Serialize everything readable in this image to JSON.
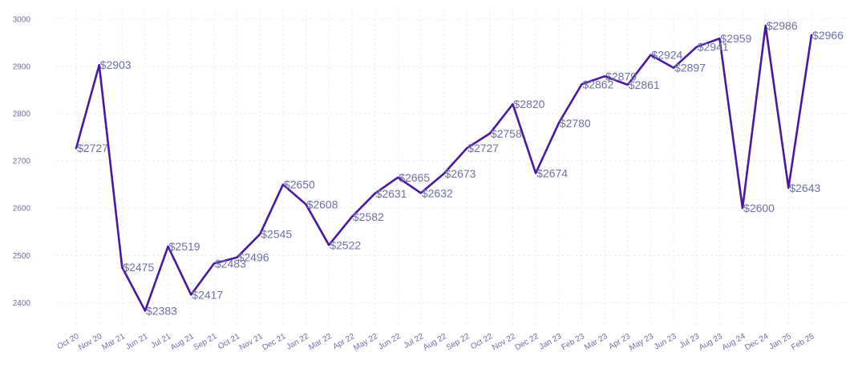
{
  "chart_data": {
    "type": "line",
    "title": "",
    "xlabel": "",
    "ylabel": "",
    "grid": true,
    "ylim": [
      2350,
      3020
    ],
    "yticks": [
      2400,
      2500,
      2600,
      2700,
      2800,
      2900,
      3000
    ],
    "line_color": "#4a17a0",
    "label_color": "#6f6fa8",
    "label_prefix": "$",
    "categories": [
      "Oct 20",
      "Nov 20",
      "Mar 21",
      "Jun 21",
      "Jul 21",
      "Aug 21",
      "Sep 21",
      "Oct 21",
      "Nov 21",
      "Dec 21",
      "Jan 22",
      "Mar 22",
      "Apr 22",
      "May 22",
      "Jun 22",
      "Jul 22",
      "Aug 22",
      "Sep 22",
      "Oct 22",
      "Nov 22",
      "Dec 22",
      "Jan 23",
      "Feb 23",
      "Mar 23",
      "Apr 23",
      "May 23",
      "Jun 23",
      "Jul 23",
      "Aug 23",
      "Aug 24",
      "Dec 24",
      "Jan 25",
      "Feb 25"
    ],
    "values": [
      2727,
      2903,
      2475,
      2383,
      2519,
      2417,
      2483,
      2496,
      2545,
      2650,
      2608,
      2522,
      2582,
      2631,
      2665,
      2632,
      2673,
      2727,
      2758,
      2820,
      2674,
      2780,
      2862,
      2879,
      2861,
      2924,
      2897,
      2941,
      2959,
      2600,
      2986,
      2643,
      2966
    ]
  }
}
